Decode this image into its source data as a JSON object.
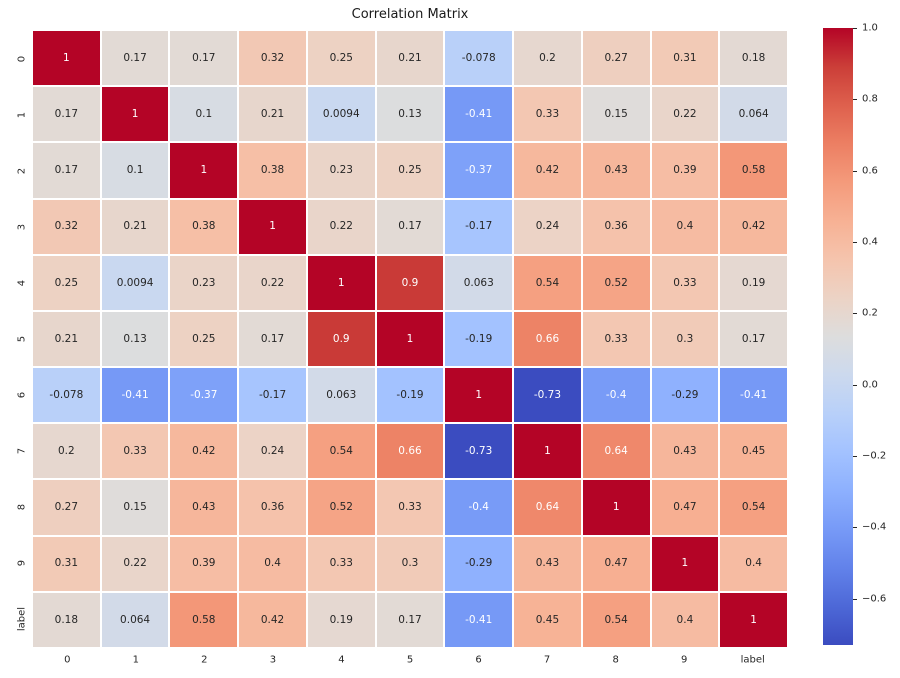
{
  "chart_data": {
    "type": "heatmap",
    "title": "Correlation Matrix",
    "categories": [
      "0",
      "1",
      "2",
      "3",
      "4",
      "5",
      "6",
      "7",
      "8",
      "9",
      "label"
    ],
    "cells": [
      [
        "1",
        "0.17",
        "0.17",
        "0.32",
        "0.25",
        "0.21",
        "-0.078",
        "0.2",
        "0.27",
        "0.31",
        "0.18"
      ],
      [
        "0.17",
        "1",
        "0.1",
        "0.21",
        "0.0094",
        "0.13",
        "-0.41",
        "0.33",
        "0.15",
        "0.22",
        "0.064"
      ],
      [
        "0.17",
        "0.1",
        "1",
        "0.38",
        "0.23",
        "0.25",
        "-0.37",
        "0.42",
        "0.43",
        "0.39",
        "0.58"
      ],
      [
        "0.32",
        "0.21",
        "0.38",
        "1",
        "0.22",
        "0.17",
        "-0.17",
        "0.24",
        "0.36",
        "0.4",
        "0.42"
      ],
      [
        "0.25",
        "0.0094",
        "0.23",
        "0.22",
        "1",
        "0.9",
        "0.063",
        "0.54",
        "0.52",
        "0.33",
        "0.19"
      ],
      [
        "0.21",
        "0.13",
        "0.25",
        "0.17",
        "0.9",
        "1",
        "-0.19",
        "0.66",
        "0.33",
        "0.3",
        "0.17"
      ],
      [
        "-0.078",
        "-0.41",
        "-0.37",
        "-0.17",
        "0.063",
        "-0.19",
        "1",
        "-0.73",
        "-0.4",
        "-0.29",
        "-0.41"
      ],
      [
        "0.2",
        "0.33",
        "0.42",
        "0.24",
        "0.54",
        "0.66",
        "-0.73",
        "1",
        "0.64",
        "0.43",
        "0.45"
      ],
      [
        "0.27",
        "0.15",
        "0.43",
        "0.36",
        "0.52",
        "0.33",
        "-0.4",
        "0.64",
        "1",
        "0.47",
        "0.54"
      ],
      [
        "0.31",
        "0.22",
        "0.39",
        "0.4",
        "0.33",
        "0.3",
        "-0.29",
        "0.43",
        "0.47",
        "1",
        "0.4"
      ],
      [
        "0.18",
        "0.064",
        "0.58",
        "0.42",
        "0.19",
        "0.17",
        "-0.41",
        "0.45",
        "0.54",
        "0.4",
        "1"
      ]
    ],
    "vmin": -0.73,
    "vmax": 1.0,
    "colormap": {
      "name": "coolwarm",
      "min_color": "#3b4cc0",
      "mid_color": "#dddddd",
      "max_color": "#b40426",
      "anchors": [
        "#3b4cc0",
        "#4d68d7",
        "#6282ea",
        "#779af7",
        "#8db0fe",
        "#a3c2ff",
        "#b8d0f9",
        "#ccd9ee",
        "#dddddd",
        "#ecd3c5",
        "#f5c4ad",
        "#f7b194",
        "#f49a7b",
        "#ec7f63",
        "#de604d",
        "#cb3e38",
        "#b40426"
      ]
    },
    "colorbar": {
      "ticks": [
        "1.0",
        "0.8",
        "0.6",
        "0.4",
        "0.2",
        "0.0",
        "−0.2",
        "−0.4",
        "−0.6"
      ]
    },
    "grid_line_color": "#ffffff",
    "annotation_text_dark": "#262626",
    "annotation_text_light": "#ffffff",
    "legend_position": "right",
    "axes": {
      "x_tick_rotation": 0,
      "y_tick_rotation": 90
    }
  }
}
